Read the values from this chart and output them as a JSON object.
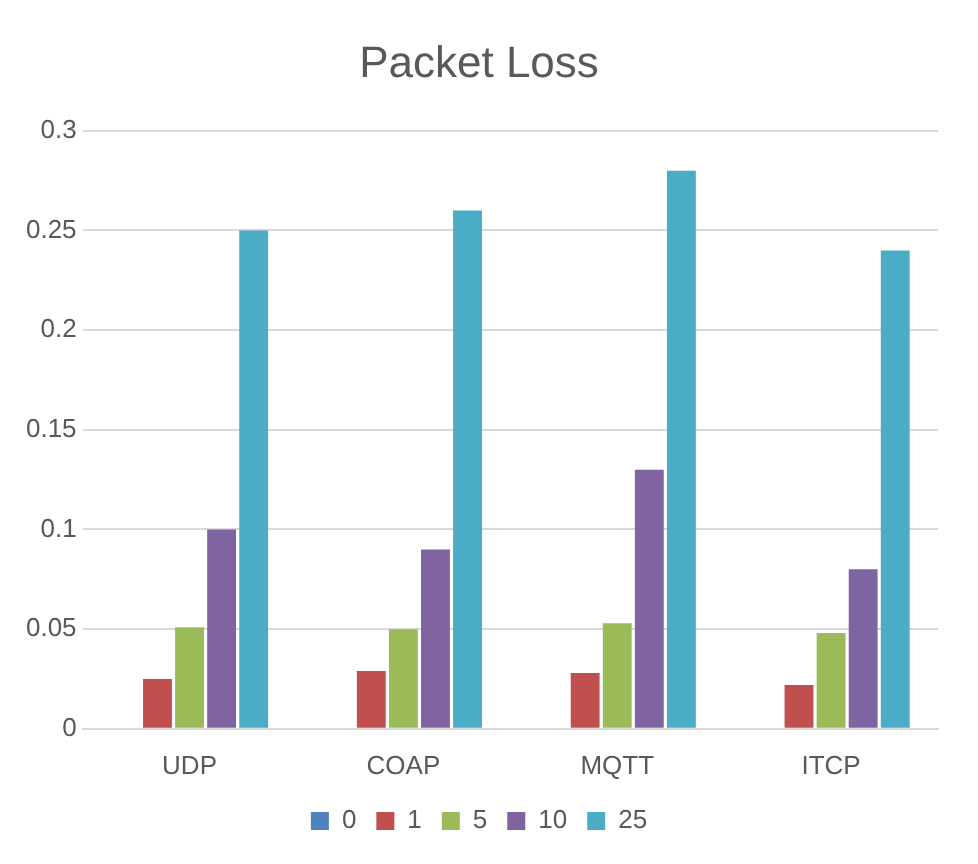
{
  "chart_data": {
    "type": "bar",
    "title": "Packet Loss",
    "categories": [
      "UDP",
      "COAP",
      "MQTT",
      "ITCP"
    ],
    "series": [
      {
        "name": "0",
        "color": "#4f81bd",
        "values": [
          0,
          0,
          0,
          0
        ]
      },
      {
        "name": "1",
        "color": "#c0504d",
        "values": [
          0.025,
          0.029,
          0.028,
          0.022
        ]
      },
      {
        "name": "5",
        "color": "#9bbb59",
        "values": [
          0.051,
          0.05,
          0.053,
          0.048
        ]
      },
      {
        "name": "10",
        "color": "#8064a2",
        "values": [
          0.1,
          0.09,
          0.13,
          0.08
        ]
      },
      {
        "name": "25",
        "color": "#4bacc6",
        "values": [
          0.25,
          0.26,
          0.28,
          0.24
        ]
      }
    ],
    "ylim": [
      0,
      0.3
    ],
    "yticks": [
      0,
      0.05,
      0.1,
      0.15,
      0.2,
      0.25,
      0.3
    ],
    "grid": "y",
    "legend": "bottom"
  }
}
